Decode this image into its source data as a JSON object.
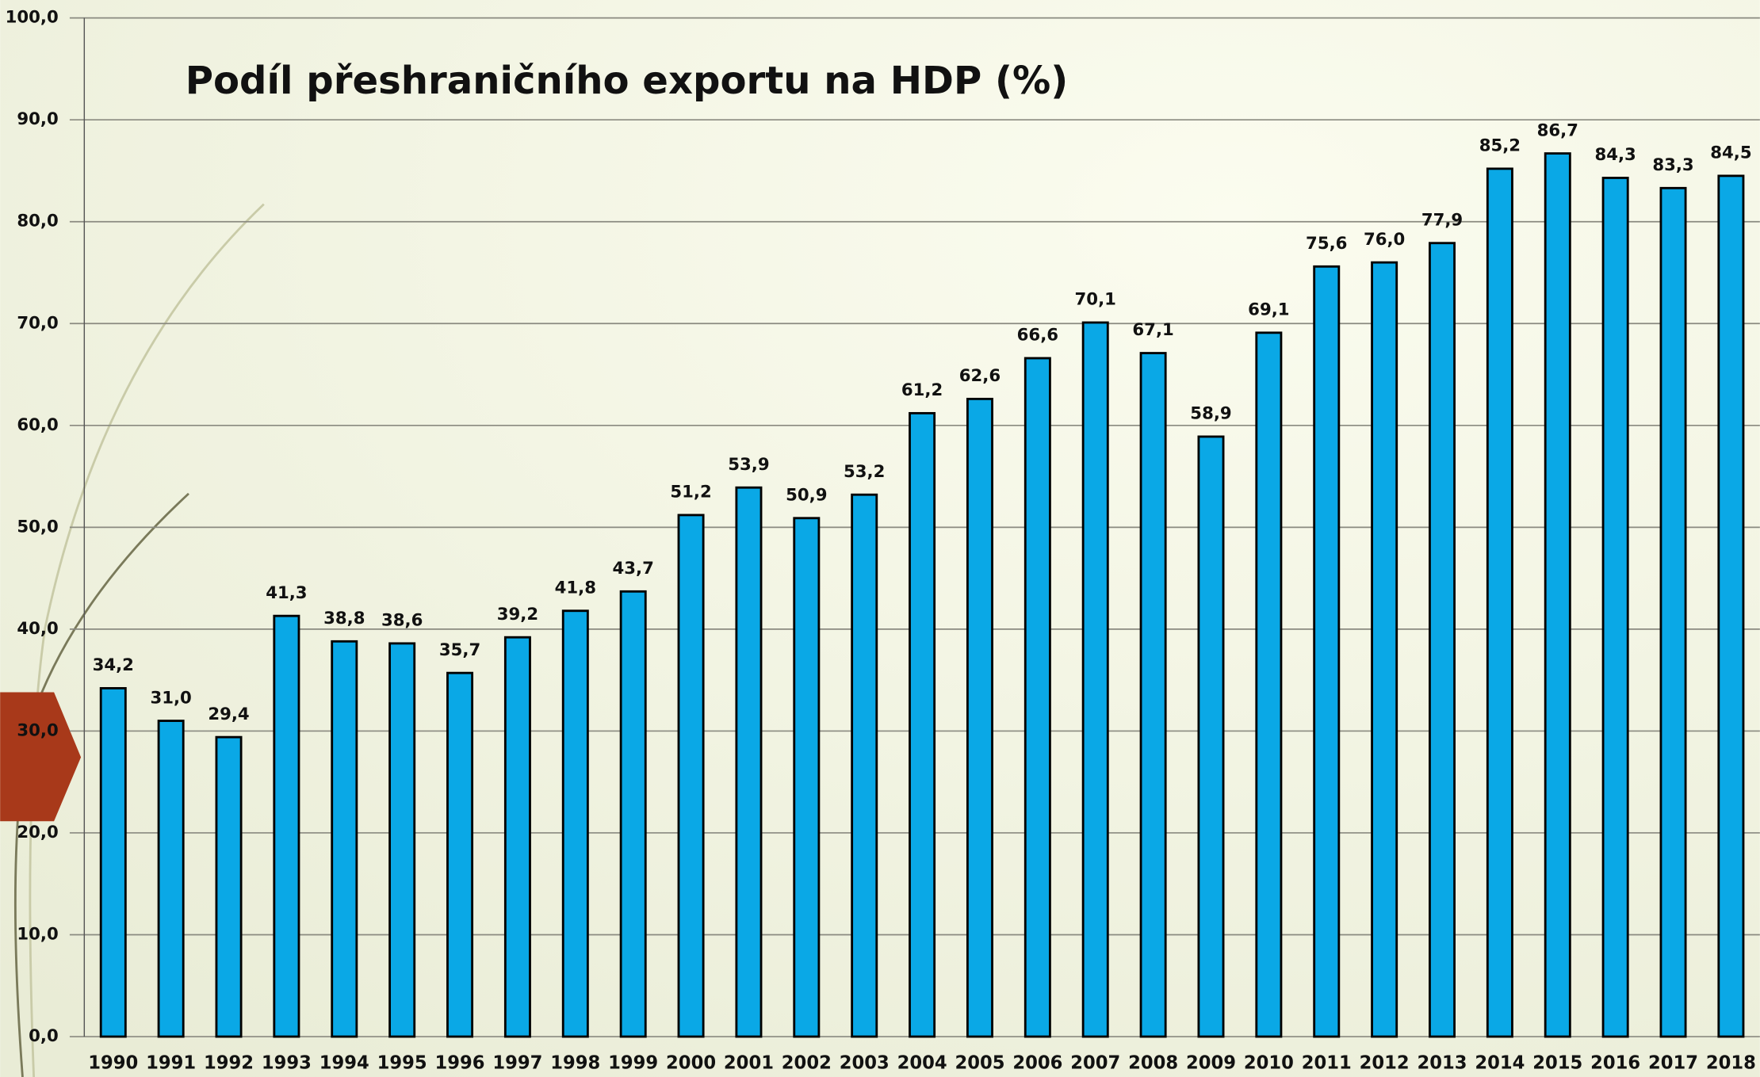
{
  "chart_data": {
    "type": "bar",
    "title": "Podíl přeshraničního exportu na HDP (%)",
    "categories": [
      "1990",
      "1991",
      "1992",
      "1993",
      "1994",
      "1995",
      "1996",
      "1997",
      "1998",
      "1999",
      "2000",
      "2001",
      "2002",
      "2003",
      "2004",
      "2005",
      "2006",
      "2007",
      "2008",
      "2009",
      "2010",
      "2011",
      "2012",
      "2013",
      "2014",
      "2015",
      "2016",
      "2017",
      "2018"
    ],
    "values": [
      34.2,
      31.0,
      29.4,
      41.3,
      38.8,
      38.6,
      35.7,
      39.2,
      41.8,
      43.7,
      51.2,
      53.9,
      50.9,
      53.2,
      61.2,
      62.6,
      66.6,
      70.1,
      67.1,
      58.9,
      69.1,
      75.6,
      76.0,
      77.9,
      85.2,
      86.7,
      84.3,
      83.3,
      84.5
    ],
    "value_labels": [
      "34,2",
      "31,0",
      "29,4",
      "41,3",
      "38,8",
      "38,6",
      "35,7",
      "39,2",
      "41,8",
      "43,7",
      "51,2",
      "53,9",
      "50,9",
      "53,2",
      "61,2",
      "62,6",
      "66,6",
      "70,1",
      "67,1",
      "58,9",
      "69,1",
      "75,6",
      "76,0",
      "77,9",
      "85,2",
      "86,7",
      "84,3",
      "83,3",
      "84,5"
    ],
    "color": "#0aa8e6",
    "ylim": [
      0,
      100
    ],
    "yticks": [
      {
        "value": 0,
        "label": "0,0"
      },
      {
        "value": 10,
        "label": "10,0"
      },
      {
        "value": 20,
        "label": "20,0"
      },
      {
        "value": 30,
        "label": "30,0"
      },
      {
        "value": 40,
        "label": "40,0"
      },
      {
        "value": 50,
        "label": "50,0"
      },
      {
        "value": 60,
        "label": "60,0"
      },
      {
        "value": 70,
        "label": "70,0"
      },
      {
        "value": 80,
        "label": "80,0"
      },
      {
        "value": 90,
        "label": "90,0"
      },
      {
        "value": 100,
        "label": "100,0"
      }
    ],
    "grid": true
  }
}
